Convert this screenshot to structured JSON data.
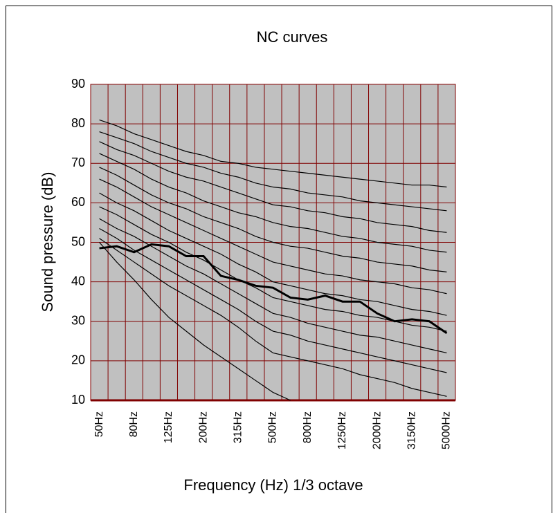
{
  "chart_data": {
    "type": "line",
    "title": "NC curves",
    "y_label": "Sound pressure (dB)",
    "x_label": "Frequency (Hz) 1/3 octave",
    "categories": [
      "50Hz",
      null,
      "80Hz",
      null,
      "125Hz",
      null,
      "200Hz",
      null,
      "315Hz",
      null,
      "500Hz",
      null,
      "800Hz",
      null,
      "1250Hz",
      null,
      "2000Hz",
      null,
      "3150Hz",
      null,
      "5000Hz"
    ],
    "ylim": [
      10,
      90
    ],
    "yticks": [
      10,
      20,
      30,
      40,
      50,
      60,
      70,
      80,
      90
    ],
    "grid": true,
    "series": [
      {
        "color": "#000000",
        "values": [
          81,
          79.5,
          77.5,
          76,
          74.5,
          73,
          72,
          70.5,
          70,
          69,
          68.5,
          68,
          67.5,
          67,
          66.5,
          66,
          65.5,
          65,
          64.5,
          64.5,
          64
        ]
      },
      {
        "color": "#000000",
        "values": [
          78,
          76.5,
          75,
          73,
          71.5,
          70,
          69,
          67.5,
          66.5,
          65,
          64,
          63.5,
          62.5,
          62,
          61.5,
          60.5,
          60,
          59.5,
          59,
          58.5,
          58
        ]
      },
      {
        "color": "#000000",
        "values": [
          75.5,
          73.5,
          72,
          70,
          68,
          66.5,
          65.5,
          64,
          62.5,
          61,
          59.5,
          59,
          58,
          57.5,
          56.5,
          56,
          55,
          54.5,
          54,
          53,
          52.5
        ]
      },
      {
        "color": "#000000",
        "values": [
          72.5,
          70.5,
          68.5,
          66,
          64,
          62.5,
          60.5,
          59,
          57.5,
          56.5,
          55,
          54,
          53.5,
          52.5,
          51.5,
          51,
          50,
          49.5,
          49,
          48,
          47.5
        ]
      },
      {
        "color": "#000000",
        "values": [
          69,
          67,
          64.5,
          62,
          60,
          58.5,
          56.5,
          55,
          53.5,
          51.5,
          50,
          49,
          48.5,
          47.5,
          46.5,
          46,
          45,
          44.5,
          44,
          43,
          42.5
        ]
      },
      {
        "color": "#000000",
        "values": [
          66,
          64,
          61.5,
          59,
          57,
          55,
          53,
          51,
          49,
          47,
          45,
          44,
          43,
          42,
          41.5,
          40.5,
          40,
          39.5,
          38.5,
          38,
          37
        ]
      },
      {
        "color": "#000000",
        "values": [
          62.5,
          60,
          58,
          55.5,
          53,
          51,
          49,
          47,
          44.5,
          42.5,
          40,
          39,
          38,
          37,
          36.5,
          35.5,
          35,
          34,
          33,
          32.5,
          31.5
        ]
      },
      {
        "color": "#000000",
        "values": [
          59,
          57,
          54.5,
          52,
          50,
          47.5,
          45.5,
          43,
          40.5,
          38.5,
          36,
          35,
          34,
          33,
          32.5,
          31.5,
          31,
          30,
          29,
          28.5,
          27.5
        ]
      },
      {
        "color": "#000000",
        "values": [
          56,
          53.5,
          51.5,
          49,
          46.5,
          44,
          42,
          39.5,
          37,
          34.5,
          32,
          31,
          29.5,
          28.5,
          27.5,
          26.5,
          26,
          25,
          24,
          23,
          22
        ]
      },
      {
        "color": "#000000",
        "values": [
          53.5,
          51,
          48,
          45.5,
          43,
          40.5,
          38,
          35.5,
          33,
          30,
          27.5,
          26.5,
          25,
          24,
          23,
          22,
          21,
          20,
          19,
          18,
          17
        ]
      },
      {
        "color": "#000000",
        "values": [
          51,
          48,
          45,
          42,
          39,
          36.5,
          34,
          31.5,
          28.5,
          25,
          22,
          21,
          20,
          19,
          18,
          16.5,
          15.5,
          14.5,
          13,
          12,
          11
        ]
      },
      {
        "color": "#000000",
        "values": [
          50,
          45,
          40.5,
          35.5,
          31,
          27.5,
          24,
          21,
          18,
          15,
          12,
          10,
          null,
          null,
          null,
          null,
          null,
          null,
          null,
          null,
          null
        ]
      },
      {
        "color": "#000000",
        "values": [
          48.5,
          49,
          47.5,
          49.5,
          49,
          46.5,
          46.5,
          41.5,
          40.5,
          39,
          38.5,
          36,
          35.5,
          36.5,
          35,
          35,
          32,
          30,
          30.5,
          30,
          27
        ]
      }
    ]
  }
}
